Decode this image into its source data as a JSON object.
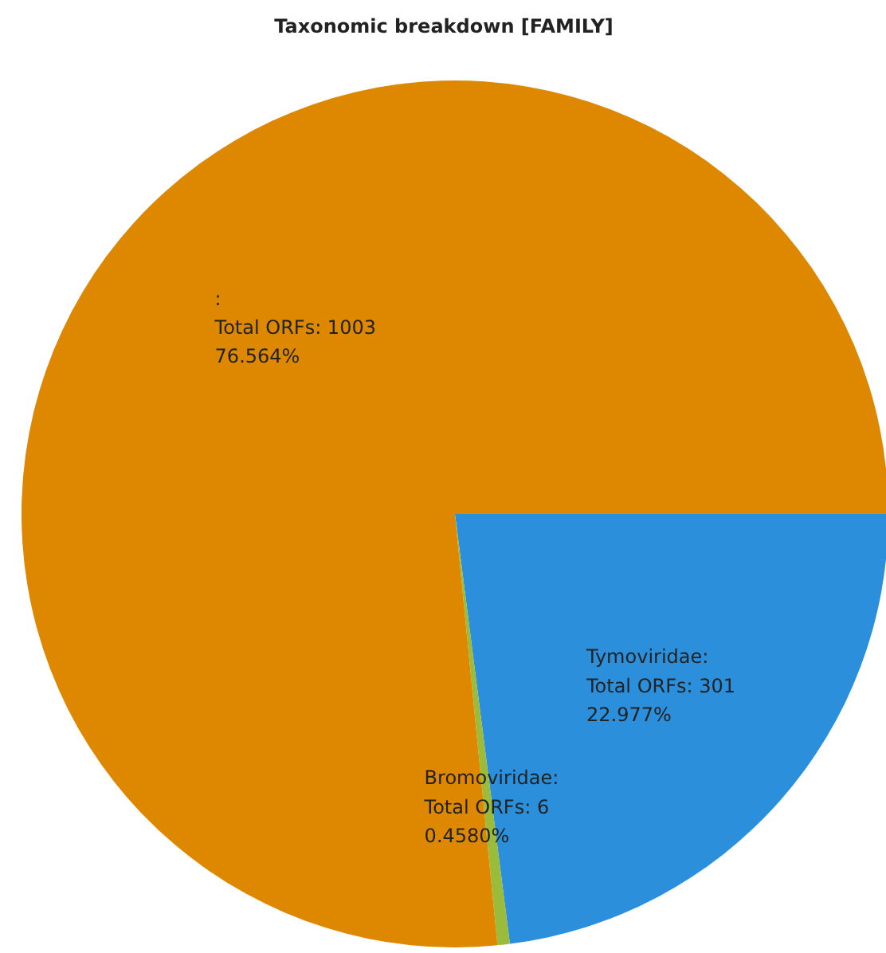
{
  "chart_data": {
    "type": "pie",
    "title": "Taxonomic breakdown [FAMILY]",
    "categories": [
      "Tymoviridae",
      "Bromoviridae",
      null
    ],
    "values": [
      301,
      6,
      1003
    ],
    "colors": [
      "#2b8fdb",
      "#9bbb3a",
      "#dd8800"
    ],
    "value_labels": [
      ":\nTotal ORFs: 301\n22.977%",
      ":\nTotal ORFs: 6\n0.4580%",
      ":\nTotal ORFs: 1003\n76.564%"
    ]
  }
}
